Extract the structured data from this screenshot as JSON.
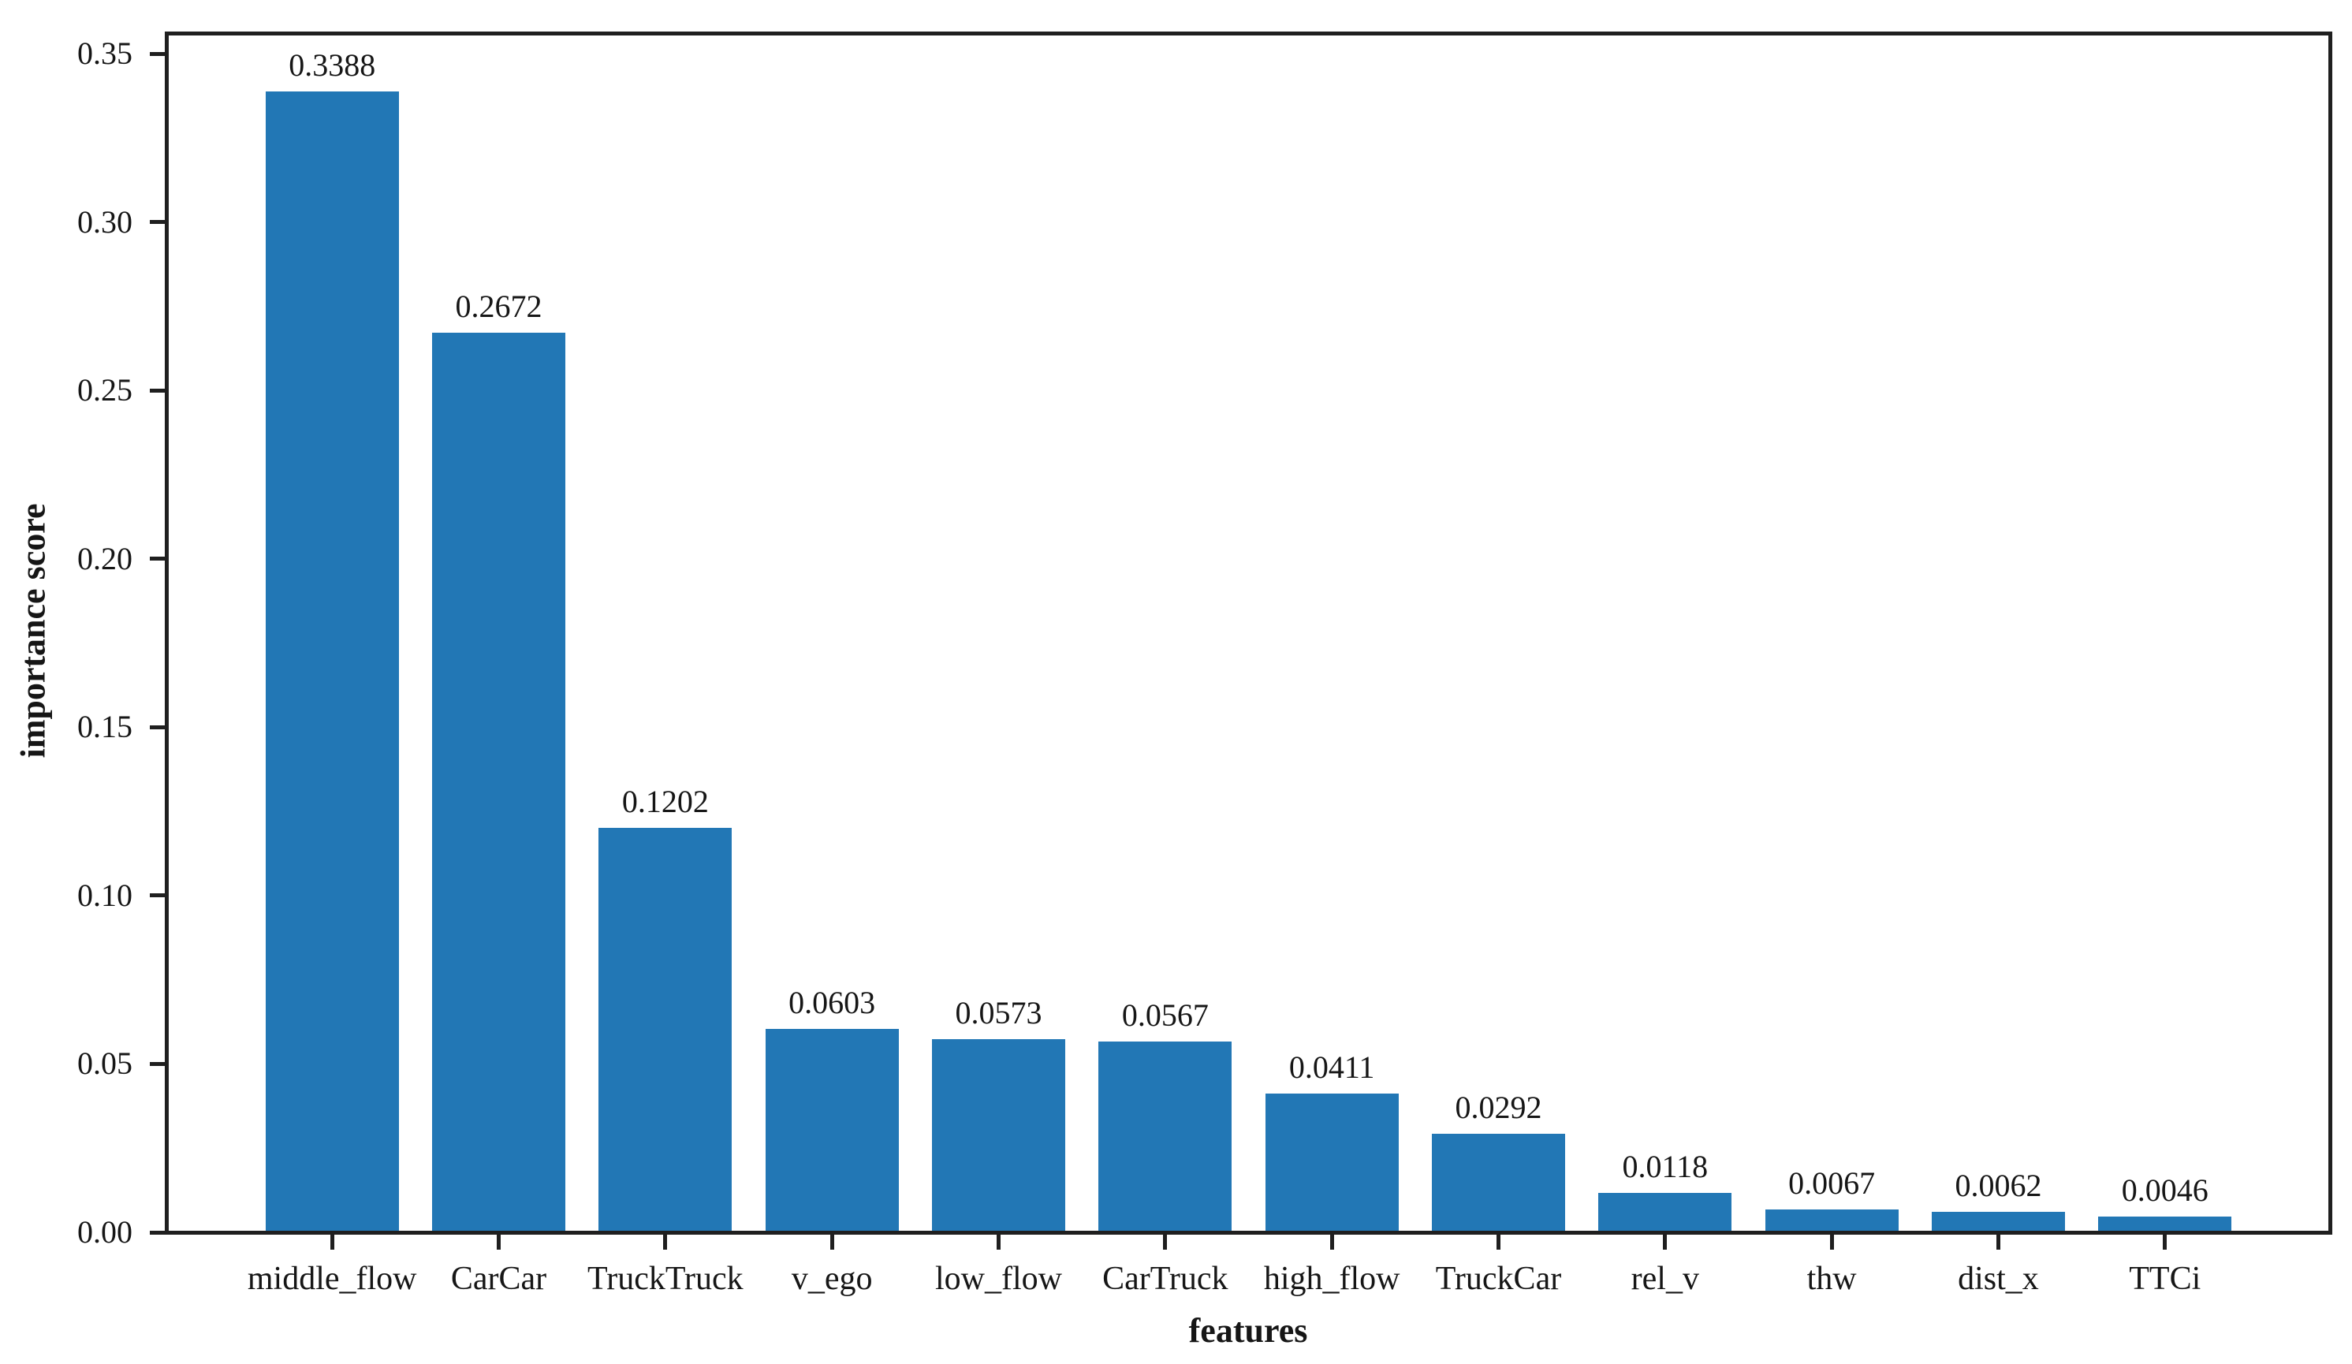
{
  "figure": {
    "background": "#ffffff",
    "bar_color": "#2277b5",
    "axis_color": "#1f1f1f",
    "text_color": "#161616"
  },
  "chart_data": {
    "type": "bar",
    "title": "",
    "xlabel": "features",
    "ylabel": "importance score",
    "categories": [
      "middle_flow",
      "CarCar",
      "TruckTruck",
      "v_ego",
      "low_flow",
      "CarTruck",
      "high_flow",
      "TruckCar",
      "rel_v",
      "thw",
      "dist_x",
      "TTCi"
    ],
    "values": [
      0.3388,
      0.2672,
      0.1202,
      0.0603,
      0.0573,
      0.0567,
      0.0411,
      0.0292,
      0.0118,
      0.0067,
      0.0062,
      0.0046
    ],
    "value_label_decimals": 4,
    "ytick_labels": [
      "0.00",
      "0.05",
      "0.10",
      "0.15",
      "0.20",
      "0.25",
      "0.30",
      "0.35"
    ],
    "ylim": [
      0,
      0.3559
    ],
    "bar_width_fraction": 0.8,
    "x_margin_units": 0.99,
    "grid": false,
    "legend": false
  }
}
